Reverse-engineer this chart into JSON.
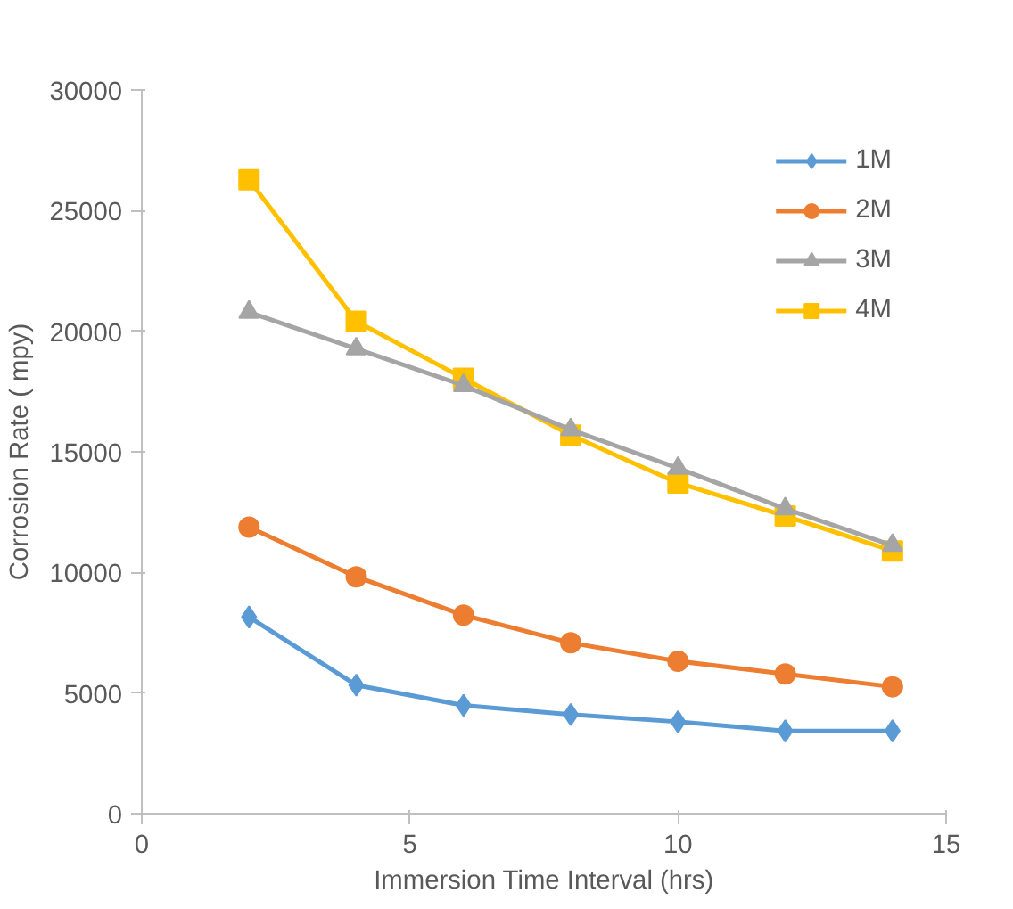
{
  "chart_data": {
    "type": "line",
    "xlabel": "Immersion Time Interval (hrs)",
    "ylabel": "Corrosion Rate ( mpy)",
    "x": [
      2,
      4,
      6,
      8,
      10,
      12,
      14
    ],
    "series": [
      {
        "name": "1M",
        "color": "#5b9bd5",
        "marker": "diamond",
        "values": [
          8150,
          5330,
          4490,
          4110,
          3810,
          3430,
          3430
        ]
      },
      {
        "name": "2M",
        "color": "#ed7d31",
        "marker": "circle",
        "values": [
          11880,
          9820,
          8230,
          7080,
          6320,
          5790,
          5260
        ]
      },
      {
        "name": "3M",
        "color": "#a5a5a5",
        "marker": "triangle",
        "values": [
          20790,
          19270,
          17750,
          15920,
          14320,
          12640,
          11120
        ]
      },
      {
        "name": "4M",
        "color": "#ffc000",
        "marker": "square",
        "values": [
          26280,
          20410,
          18050,
          15690,
          13710,
          12340,
          10890
        ]
      }
    ],
    "xlim": [
      0,
      15
    ],
    "xticks": [
      0,
      5,
      10,
      15
    ],
    "ylim": [
      0,
      30000
    ],
    "yticks": [
      0,
      5000,
      10000,
      15000,
      20000,
      25000,
      30000
    ],
    "grid": false,
    "legend": "top right",
    "line_style": "solid"
  }
}
